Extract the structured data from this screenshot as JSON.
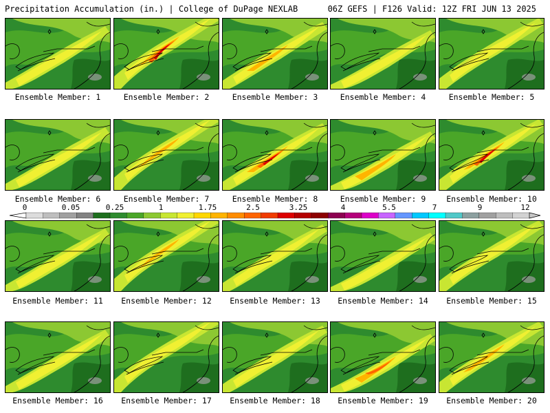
{
  "header": {
    "title_left": "Precipitation Accumulation (in.) | College of DuPage NEXLAB",
    "title_right": "06Z GEFS | F126 Valid: 12Z FRI JUN 13 2025"
  },
  "panels": [
    {
      "label": "Ensemble Member: 1",
      "intensity": 0.35
    },
    {
      "label": "Ensemble Member: 2",
      "intensity": 0.85
    },
    {
      "label": "Ensemble Member: 3",
      "intensity": 0.55
    },
    {
      "label": "Ensemble Member: 4",
      "intensity": 0.45
    },
    {
      "label": "Ensemble Member: 5",
      "intensity": 0.45
    },
    {
      "label": "Ensemble Member: 6",
      "intensity": 0.35
    },
    {
      "label": "Ensemble Member: 7",
      "intensity": 0.5
    },
    {
      "label": "Ensemble Member: 8",
      "intensity": 0.8
    },
    {
      "label": "Ensemble Member: 9",
      "intensity": 0.55
    },
    {
      "label": "Ensemble Member: 10",
      "intensity": 0.8
    },
    {
      "label": "Ensemble Member: 11",
      "intensity": 0.3
    },
    {
      "label": "Ensemble Member: 12",
      "intensity": 0.6
    },
    {
      "label": "Ensemble Member: 13",
      "intensity": 0.4
    },
    {
      "label": "Ensemble Member: 14",
      "intensity": 0.35
    },
    {
      "label": "Ensemble Member: 15",
      "intensity": 0.25
    },
    {
      "label": "Ensemble Member: 16",
      "intensity": 0.4
    },
    {
      "label": "Ensemble Member: 17",
      "intensity": 0.3
    },
    {
      "label": "Ensemble Member: 18",
      "intensity": 0.45
    },
    {
      "label": "Ensemble Member: 19",
      "intensity": 0.65
    },
    {
      "label": "Ensemble Member: 20",
      "intensity": 0.6
    }
  ],
  "colorbar": {
    "tick_labels": [
      "0",
      "0.05",
      "0.25",
      "1",
      "1.75",
      "2.5",
      "3.25",
      "4",
      "5.5",
      "7",
      "9",
      "12"
    ],
    "colors": [
      "#dcdcdc",
      "#bebebe",
      "#a0a0a0",
      "#828282",
      "#1e6e1e",
      "#2e8b2e",
      "#4aa628",
      "#8cc832",
      "#c8e632",
      "#f0f032",
      "#ffd700",
      "#ffb400",
      "#ff8c00",
      "#ff6400",
      "#f03c00",
      "#dc0000",
      "#b40000",
      "#8c0000",
      "#8c0050",
      "#b4007a",
      "#dc00c8",
      "#c864ff",
      "#6496ff",
      "#00c8ff",
      "#00ffff",
      "#50c8c8",
      "#8ca0a0",
      "#a0a0a0",
      "#bebebe",
      "#d2d2d2"
    ]
  }
}
